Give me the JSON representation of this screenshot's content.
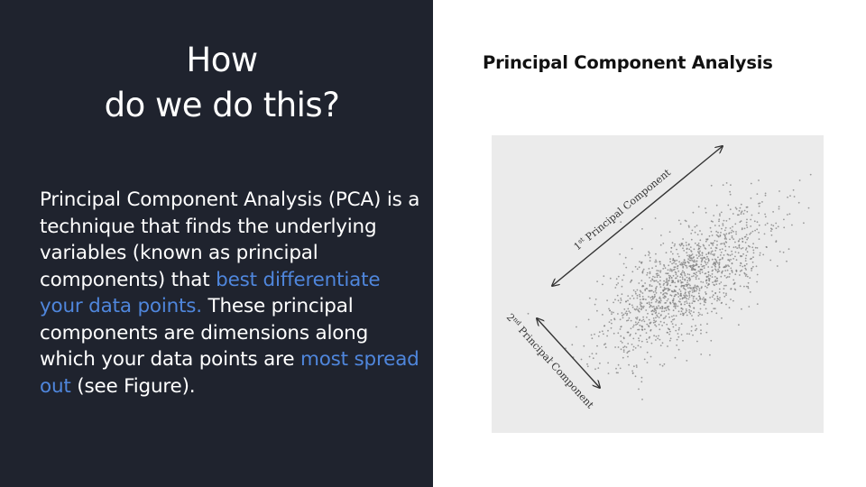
{
  "slide": {
    "heading_line1": "How",
    "heading_line2": "do we do this?",
    "body": {
      "part1": "Principal Component Analysis (PCA) is a technique that finds the underlying variables (known as principal components) that ",
      "highlight1": "best differentiate your data points.",
      "part2": " These principal components are dimensions along which your data points are ",
      "highlight2": "most spread out",
      "part3": " (see Figure)."
    },
    "highlight_color": "#4f86dc"
  },
  "figure": {
    "title": "Principal Component Analysis",
    "pc1_label": "1st Principal Component",
    "pc2_label": "2nd Principal Component",
    "pc1_num": "1",
    "pc1_sup": "st",
    "pc2_num": "2",
    "pc2_sup": "nd",
    "pc_word": " Principal Component"
  }
}
